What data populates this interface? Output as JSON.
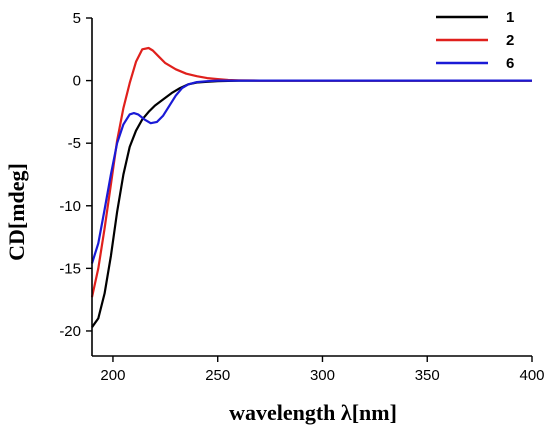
{
  "chart_data": {
    "type": "line",
    "title": "",
    "xlabel": "wavelength λ[nm]",
    "ylabel": "CD[mdeg]",
    "xlim": [
      190,
      400
    ],
    "ylim": [
      -22,
      5
    ],
    "xticks": [
      200,
      250,
      300,
      350,
      400
    ],
    "yticks": [
      5,
      0,
      -5,
      -10,
      -15,
      -20
    ],
    "xtick_labels": [
      "200",
      "250",
      "300",
      "350",
      "400"
    ],
    "ytick_labels": [
      "5",
      "0",
      "-5",
      "-10",
      "-15",
      "-20"
    ],
    "grid": false,
    "legend_position": "top-right",
    "series": [
      {
        "name": "1",
        "color": "#000000",
        "x": [
          190,
          193,
          196,
          199,
          202,
          205,
          208,
          211,
          214,
          217,
          220,
          224,
          228,
          232,
          236,
          240,
          245,
          250,
          260,
          280,
          300,
          320,
          340,
          360,
          380,
          400
        ],
        "y": [
          -19.7,
          -19.0,
          -17.0,
          -14.0,
          -10.5,
          -7.5,
          -5.3,
          -4.0,
          -3.1,
          -2.5,
          -2.0,
          -1.5,
          -1.0,
          -0.6,
          -0.3,
          -0.15,
          -0.1,
          -0.05,
          0,
          0,
          0,
          0,
          0,
          0,
          0,
          0
        ]
      },
      {
        "name": "2",
        "color": "#e0201c",
        "x": [
          190,
          193,
          196,
          199,
          202,
          205,
          208,
          211,
          214,
          217,
          219,
          222,
          225,
          230,
          235,
          240,
          245,
          250,
          255,
          260,
          270,
          280,
          300,
          320,
          340,
          360,
          380,
          400
        ],
        "y": [
          -17.3,
          -15.0,
          -11.8,
          -8.3,
          -4.8,
          -2.2,
          -0.2,
          1.5,
          2.5,
          2.6,
          2.4,
          1.9,
          1.4,
          0.9,
          0.55,
          0.35,
          0.2,
          0.12,
          0.05,
          0.02,
          0,
          0,
          0,
          0,
          0,
          0,
          0,
          0
        ]
      },
      {
        "name": "6",
        "color": "#1a1ad6",
        "x": [
          190,
          193,
          196,
          199,
          202,
          205,
          208,
          210,
          212,
          215,
          218,
          221,
          224,
          227,
          230,
          233,
          236,
          240,
          245,
          250,
          260,
          280,
          300,
          320,
          340,
          360,
          380,
          400
        ],
        "y": [
          -14.6,
          -13.0,
          -10.3,
          -7.5,
          -5.0,
          -3.5,
          -2.7,
          -2.6,
          -2.7,
          -3.1,
          -3.4,
          -3.3,
          -2.8,
          -2.0,
          -1.2,
          -0.6,
          -0.3,
          -0.12,
          -0.05,
          0,
          0,
          0,
          0,
          0,
          0,
          0,
          0,
          0
        ]
      }
    ]
  }
}
